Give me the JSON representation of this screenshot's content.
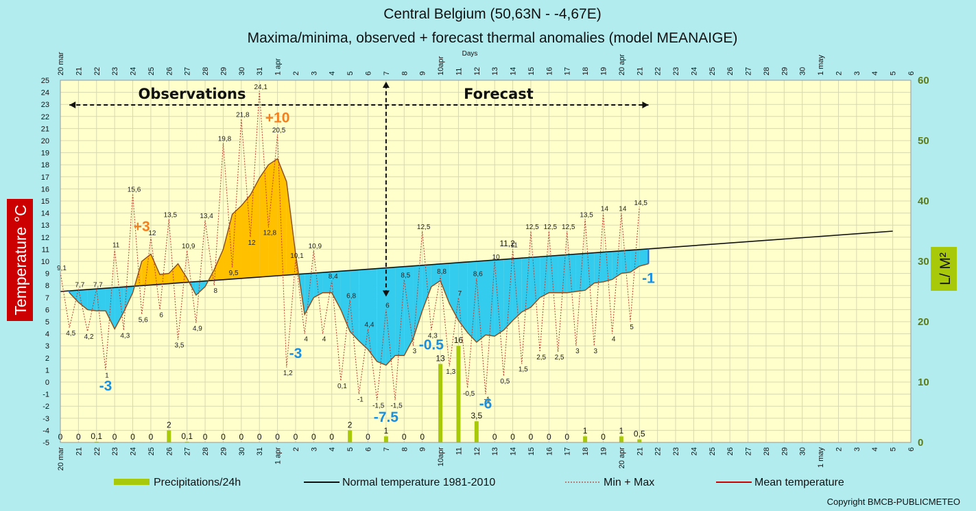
{
  "title": "Central Belgium (50,63N - -4,67E)",
  "subtitle": "Maxima/minima, observed + forecast thermal anomalies (model MEANAIGE)",
  "copyright": "Copyright BMCB-PUBLICMETEO",
  "colors": {
    "background": "#b3ecef",
    "plot_bg": "#ffffcc",
    "warm_fill": "#ffc000",
    "cold_fill": "#33ccee",
    "precip": "#a8c80a",
    "normal_line": "#111111",
    "minmax_line": "#c0392b",
    "mean_line": "#cc0000",
    "anomaly_warm": "#f47f1f",
    "anomaly_cold": "#1a8fe0",
    "ylabel_bg": "#cc0000",
    "y2label_bg": "#a8c80a"
  },
  "labels": {
    "observations": "Observations",
    "forecast": "Forecast",
    "y_left": "Temperature °C",
    "y_right": "L/ M²",
    "days": "Days"
  },
  "legend": [
    {
      "name": "Precipitations/24h",
      "style": "bar"
    },
    {
      "name": "Normal temperature 1981-2010",
      "style": "line"
    },
    {
      "name": "Min + Max",
      "style": "dotted"
    },
    {
      "name": "Mean temperature",
      "style": "mean"
    }
  ],
  "chart_data": {
    "type": "line",
    "x_ticks": [
      "20 mar",
      "21",
      "22",
      "23",
      "24",
      "25",
      "26",
      "27",
      "28",
      "29",
      "30",
      "31",
      "1 apr",
      "2",
      "3",
      "4",
      "5",
      "6",
      "7",
      "8",
      "9",
      "10apr",
      "11",
      "12",
      "13",
      "14",
      "15",
      "16",
      "17",
      "18",
      "19",
      "20 apr",
      "21",
      "22",
      "23",
      "24",
      "25",
      "26",
      "27",
      "28",
      "29",
      "30",
      "1 may",
      "2",
      "3",
      "4",
      "5",
      "6"
    ],
    "ylim": [
      -5,
      25
    ],
    "y_ticks": [
      -5,
      -4,
      -3,
      -2,
      -1,
      0,
      1,
      2,
      3,
      4,
      5,
      6,
      7,
      8,
      9,
      10,
      11,
      12,
      13,
      14,
      15,
      16,
      17,
      18,
      19,
      20,
      21,
      22,
      23,
      24,
      25
    ],
    "y2lim": [
      0,
      60
    ],
    "y2_ticks": [
      0,
      10,
      20,
      30,
      40,
      50,
      60
    ],
    "minmax": [
      {
        "day": 0,
        "v": 9.1,
        "label": "9,1"
      },
      {
        "day": 0.5,
        "v": 4.5,
        "label": "4,5"
      },
      {
        "day": 1,
        "v": 7.7,
        "label": "7,7"
      },
      {
        "day": 1.5,
        "v": 4.2,
        "label": "4,2"
      },
      {
        "day": 2,
        "v": 7.7,
        "label": "7,7"
      },
      {
        "day": 2.5,
        "v": 1,
        "label": "1"
      },
      {
        "day": 3,
        "v": 11,
        "label": "11"
      },
      {
        "day": 3.5,
        "v": 4.3,
        "label": "4,3"
      },
      {
        "day": 4,
        "v": 15.6,
        "label": "15,6"
      },
      {
        "day": 4.5,
        "v": 5.6,
        "label": "5,6"
      },
      {
        "day": 5,
        "v": 12,
        "label": "12"
      },
      {
        "day": 5.5,
        "v": 6,
        "label": "6"
      },
      {
        "day": 6,
        "v": 13.5,
        "label": "13,5"
      },
      {
        "day": 6.5,
        "v": 3.5,
        "label": "3,5"
      },
      {
        "day": 7,
        "v": 10.9,
        "label": "10,9"
      },
      {
        "day": 7.5,
        "v": 4.9,
        "label": "4,9"
      },
      {
        "day": 8,
        "v": 13.4,
        "label": "13,4"
      },
      {
        "day": 8.5,
        "v": 8,
        "label": "8"
      },
      {
        "day": 9,
        "v": 19.8,
        "label": "19,8"
      },
      {
        "day": 9.5,
        "v": 9.5,
        "label": "9,5"
      },
      {
        "day": 10,
        "v": 21.8,
        "label": "21,8"
      },
      {
        "day": 10.5,
        "v": 12,
        "label": "12"
      },
      {
        "day": 11,
        "v": 24.1,
        "label": "24,1"
      },
      {
        "day": 11.5,
        "v": 12.8,
        "label": "12,8"
      },
      {
        "day": 12,
        "v": 20.5,
        "label": "20,5"
      },
      {
        "day": 12.5,
        "v": 1.2,
        "label": "1,2"
      },
      {
        "day": 13,
        "v": 10.1,
        "label": "10,1"
      },
      {
        "day": 13.5,
        "v": 4,
        "label": "4"
      },
      {
        "day": 14,
        "v": 10.9,
        "label": "10,9"
      },
      {
        "day": 14.5,
        "v": 4,
        "label": "4"
      },
      {
        "day": 15,
        "v": 8.4,
        "label": "8,4"
      },
      {
        "day": 15.5,
        "v": 0.1,
        "label": "0,1"
      },
      {
        "day": 16,
        "v": 6.8,
        "label": "6,8"
      },
      {
        "day": 16.5,
        "v": -1,
        "label": "-1"
      },
      {
        "day": 17,
        "v": 4.4,
        "label": "4,4"
      },
      {
        "day": 17.5,
        "v": -1.5,
        "label": "-1,5"
      },
      {
        "day": 18,
        "v": 6,
        "label": "6"
      },
      {
        "day": 18.5,
        "v": -1.5,
        "label": "-1,5"
      },
      {
        "day": 19,
        "v": 8.5,
        "label": "8,5"
      },
      {
        "day": 19.5,
        "v": 3,
        "label": "3"
      },
      {
        "day": 20,
        "v": 12.5,
        "label": "12,5"
      },
      {
        "day": 20.5,
        "v": 4.3,
        "label": "4,3"
      },
      {
        "day": 21,
        "v": 8.8,
        "label": "8,8"
      },
      {
        "day": 21.5,
        "v": 1.3,
        "label": "1,3"
      },
      {
        "day": 22,
        "v": 7,
        "label": "7"
      },
      {
        "day": 22.5,
        "v": -0.5,
        "label": "-0,5"
      },
      {
        "day": 23,
        "v": 8.6,
        "label": "8,6"
      },
      {
        "day": 23.5,
        "v": -1,
        "label": "-1"
      },
      {
        "day": 24,
        "v": 10,
        "label": "10"
      },
      {
        "day": 24.5,
        "v": 0.5,
        "label": "0,5"
      },
      {
        "day": 25,
        "v": 11,
        "label": "11"
      },
      {
        "day": 25.5,
        "v": 1.5,
        "label": "1,5"
      },
      {
        "day": 26,
        "v": 12.5,
        "label": "12,5"
      },
      {
        "day": 26.5,
        "v": 2.5,
        "label": "2,5"
      },
      {
        "day": 27,
        "v": 12.5,
        "label": "12,5"
      },
      {
        "day": 27.5,
        "v": 2.5,
        "label": "2,5"
      },
      {
        "day": 28,
        "v": 12.5,
        "label": "12,5"
      },
      {
        "day": 28.5,
        "v": 3,
        "label": "3"
      },
      {
        "day": 29,
        "v": 13.5,
        "label": "13,5"
      },
      {
        "day": 29.5,
        "v": 3,
        "label": "3"
      },
      {
        "day": 30,
        "v": 14,
        "label": "14"
      },
      {
        "day": 30.5,
        "v": 4,
        "label": "4"
      },
      {
        "day": 31,
        "v": 14,
        "label": "14"
      },
      {
        "day": 31.5,
        "v": 5,
        "label": "5"
      },
      {
        "day": 32,
        "v": 14.5,
        "label": "14,5"
      }
    ],
    "mean": [
      {
        "day": 0.5,
        "v": 7.4
      },
      {
        "day": 1,
        "v": 6.6
      },
      {
        "day": 1.5,
        "v": 6
      },
      {
        "day": 2,
        "v": 5.9
      },
      {
        "day": 2.5,
        "v": 5.9
      },
      {
        "day": 3,
        "v": 4.4
      },
      {
        "day": 3.5,
        "v": 5.8
      },
      {
        "day": 4,
        "v": 7.4
      },
      {
        "day": 4.5,
        "v": 10
      },
      {
        "day": 5,
        "v": 10.6
      },
      {
        "day": 5.5,
        "v": 8.9
      },
      {
        "day": 6,
        "v": 9
      },
      {
        "day": 6.5,
        "v": 9.8
      },
      {
        "day": 7,
        "v": 8.6
      },
      {
        "day": 7.5,
        "v": 7.2
      },
      {
        "day": 8,
        "v": 7.9
      },
      {
        "day": 8.5,
        "v": 9.3
      },
      {
        "day": 9,
        "v": 11
      },
      {
        "day": 9.5,
        "v": 13.9
      },
      {
        "day": 10,
        "v": 14.6
      },
      {
        "day": 10.5,
        "v": 15.5
      },
      {
        "day": 11,
        "v": 16.9
      },
      {
        "day": 11.5,
        "v": 18
      },
      {
        "day": 12,
        "v": 18.5
      },
      {
        "day": 12.5,
        "v": 16.6
      },
      {
        "day": 13,
        "v": 10.6
      },
      {
        "day": 13.5,
        "v": 5.6
      },
      {
        "day": 14,
        "v": 7
      },
      {
        "day": 14.5,
        "v": 7.4
      },
      {
        "day": 15,
        "v": 7.4
      },
      {
        "day": 15.5,
        "v": 6
      },
      {
        "day": 16,
        "v": 4.2
      },
      {
        "day": 16.5,
        "v": 3.4
      },
      {
        "day": 17,
        "v": 2.7
      },
      {
        "day": 17.5,
        "v": 1.7
      },
      {
        "day": 18,
        "v": 1.4
      },
      {
        "day": 18.5,
        "v": 2.2
      },
      {
        "day": 19,
        "v": 2.2
      },
      {
        "day": 19.5,
        "v": 3.6
      },
      {
        "day": 20,
        "v": 5.9
      },
      {
        "day": 20.5,
        "v": 7.9
      },
      {
        "day": 21,
        "v": 8.4
      },
      {
        "day": 21.5,
        "v": 6.5
      },
      {
        "day": 22,
        "v": 5.1
      },
      {
        "day": 22.5,
        "v": 4.1
      },
      {
        "day": 23,
        "v": 3.3
      },
      {
        "day": 23.5,
        "v": 3.9
      },
      {
        "day": 24,
        "v": 3.8
      },
      {
        "day": 24.5,
        "v": 4.3
      },
      {
        "day": 25,
        "v": 5.1
      },
      {
        "day": 25.5,
        "v": 5.8
      },
      {
        "day": 26,
        "v": 6.2
      },
      {
        "day": 26.5,
        "v": 7
      },
      {
        "day": 27,
        "v": 7.4
      },
      {
        "day": 27.5,
        "v": 7.4
      },
      {
        "day": 28,
        "v": 7.4
      },
      {
        "day": 28.5,
        "v": 7.5
      },
      {
        "day": 29,
        "v": 7.6
      },
      {
        "day": 29.5,
        "v": 8.2
      },
      {
        "day": 30,
        "v": 8.3
      },
      {
        "day": 30.5,
        "v": 8.5
      },
      {
        "day": 31,
        "v": 9
      },
      {
        "day": 31.5,
        "v": 9.1
      },
      {
        "day": 32,
        "v": 9.6
      },
      {
        "day": 32.5,
        "v": 9.8
      }
    ],
    "normal": {
      "start_day": 0,
      "start_v": 7.5,
      "end_day": 46,
      "end_v": 12.5
    },
    "precip": [
      {
        "day": 0,
        "v": 0,
        "label": "0"
      },
      {
        "day": 1,
        "v": 0,
        "label": "0"
      },
      {
        "day": 2,
        "v": 0.1,
        "label": "0,1"
      },
      {
        "day": 3,
        "v": 0,
        "label": "0"
      },
      {
        "day": 4,
        "v": 0,
        "label": "0"
      },
      {
        "day": 5,
        "v": 0,
        "label": "0"
      },
      {
        "day": 6,
        "v": 2,
        "label": "2"
      },
      {
        "day": 7,
        "v": 0.1,
        "label": "0,1"
      },
      {
        "day": 8,
        "v": 0,
        "label": "0"
      },
      {
        "day": 9,
        "v": 0,
        "label": "0"
      },
      {
        "day": 10,
        "v": 0,
        "label": "0"
      },
      {
        "day": 11,
        "v": 0,
        "label": "0"
      },
      {
        "day": 12,
        "v": 0,
        "label": "0"
      },
      {
        "day": 13,
        "v": 0,
        "label": "0"
      },
      {
        "day": 14,
        "v": 0,
        "label": "0"
      },
      {
        "day": 15,
        "v": 0,
        "label": "0"
      },
      {
        "day": 16,
        "v": 2,
        "label": "2"
      },
      {
        "day": 17,
        "v": 0,
        "label": "0"
      },
      {
        "day": 18,
        "v": 1,
        "label": "1"
      },
      {
        "day": 19,
        "v": 0,
        "label": "0"
      },
      {
        "day": 20,
        "v": 0,
        "label": "0"
      },
      {
        "day": 21,
        "v": 13,
        "label": "13"
      },
      {
        "day": 22,
        "v": 16,
        "label": "16"
      },
      {
        "day": 23,
        "v": 3.5,
        "label": "3,5"
      },
      {
        "day": 24,
        "v": 0,
        "label": "0"
      },
      {
        "day": 25,
        "v": 0,
        "label": "0"
      },
      {
        "day": 26,
        "v": 0,
        "label": "0"
      },
      {
        "day": 27,
        "v": 0,
        "label": "0"
      },
      {
        "day": 28,
        "v": 0,
        "label": "0"
      },
      {
        "day": 29,
        "v": 1,
        "label": "1"
      },
      {
        "day": 30,
        "v": 0,
        "label": "0"
      },
      {
        "day": 31,
        "v": 1,
        "label": "1"
      },
      {
        "day": 32,
        "v": 0.5,
        "label": "0,5"
      }
    ],
    "anomalies": [
      {
        "text": "+3",
        "day": 4.5,
        "v": 12.5,
        "kind": "warm"
      },
      {
        "text": "+10",
        "day": 12,
        "v": 21.5,
        "kind": "warm"
      },
      {
        "text": "-3",
        "day": 2.5,
        "v": -0.7,
        "kind": "cold"
      },
      {
        "text": "-3",
        "day": 13,
        "v": 2,
        "kind": "cold"
      },
      {
        "text": "-7.5",
        "day": 18,
        "v": -3.3,
        "kind": "cold"
      },
      {
        "text": "-0.5",
        "day": 20.5,
        "v": 2.7,
        "kind": "cold"
      },
      {
        "text": "-6",
        "day": 23.5,
        "v": -2.2,
        "kind": "cold"
      },
      {
        "text": "-1",
        "day": 32.5,
        "v": 8.2,
        "kind": "cold"
      }
    ],
    "extra_labels": [
      {
        "text": "11,2",
        "day": 25,
        "v": 11.2
      }
    ],
    "observation_forecast_split_day": 18,
    "last_day": 47
  }
}
